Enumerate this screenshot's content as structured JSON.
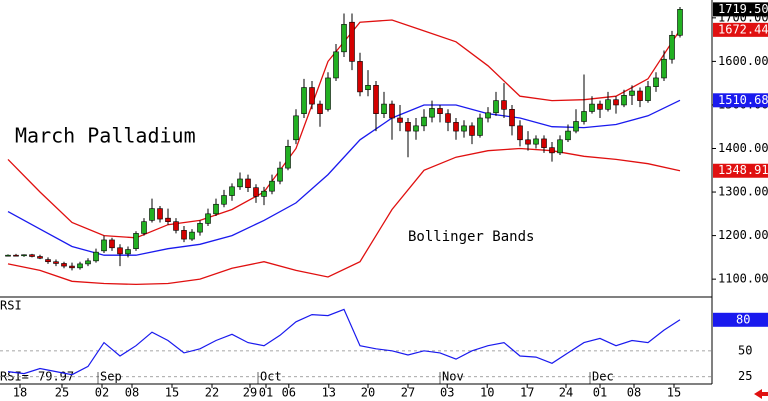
{
  "chart_data": [
    {
      "type": "candlestick",
      "title": "March Palladium",
      "annotation": "Bollinger Bands",
      "up_color": "#22b022",
      "down_color": "#d40000",
      "last_label": "1719.50",
      "xlim": [
        -1,
        88
      ],
      "ylim": [
        1059,
        1741
      ],
      "yticks": [
        {
          "value": 1100,
          "label": "1100.00"
        },
        {
          "value": 1200,
          "label": "1200.00"
        },
        {
          "value": 1300,
          "label": "1300.00"
        },
        {
          "value": 1400,
          "label": "1400.00"
        },
        {
          "value": 1500,
          "label": "1500.00"
        },
        {
          "value": 1600,
          "label": "1600.00"
        },
        {
          "value": 1700,
          "label": "1700.00"
        }
      ],
      "ohlc": [
        [
          1155,
          1157,
          1153,
          1155
        ],
        [
          1155,
          1158,
          1152,
          1154
        ],
        [
          1154,
          1157,
          1151,
          1156
        ],
        [
          1156,
          1158,
          1150,
          1152
        ],
        [
          1152,
          1156,
          1146,
          1148
        ],
        [
          1145,
          1150,
          1135,
          1140
        ],
        [
          1140,
          1145,
          1130,
          1136
        ],
        [
          1136,
          1140,
          1125,
          1130
        ],
        [
          1130,
          1138,
          1120,
          1126
        ],
        [
          1126,
          1140,
          1122,
          1135
        ],
        [
          1135,
          1148,
          1130,
          1142
        ],
        [
          1142,
          1170,
          1138,
          1162
        ],
        [
          1165,
          1200,
          1160,
          1190
        ],
        [
          1190,
          1195,
          1165,
          1172
        ],
        [
          1172,
          1180,
          1130,
          1158
        ],
        [
          1158,
          1175,
          1150,
          1168
        ],
        [
          1170,
          1210,
          1165,
          1205
        ],
        [
          1205,
          1240,
          1200,
          1232
        ],
        [
          1235,
          1285,
          1230,
          1262
        ],
        [
          1262,
          1268,
          1230,
          1238
        ],
        [
          1240,
          1262,
          1225,
          1232
        ],
        [
          1232,
          1240,
          1205,
          1212
        ],
        [
          1212,
          1222,
          1185,
          1192
        ],
        [
          1192,
          1215,
          1188,
          1208
        ],
        [
          1208,
          1235,
          1200,
          1228
        ],
        [
          1228,
          1262,
          1222,
          1250
        ],
        [
          1250,
          1285,
          1245,
          1272
        ],
        [
          1272,
          1305,
          1265,
          1292
        ],
        [
          1292,
          1320,
          1280,
          1312
        ],
        [
          1312,
          1345,
          1305,
          1330
        ],
        [
          1330,
          1340,
          1300,
          1310
        ],
        [
          1310,
          1318,
          1275,
          1290
        ],
        [
          1290,
          1312,
          1270,
          1302
        ],
        [
          1302,
          1340,
          1295,
          1325
        ],
        [
          1325,
          1370,
          1318,
          1355
        ],
        [
          1355,
          1420,
          1350,
          1405
        ],
        [
          1420,
          1490,
          1410,
          1475
        ],
        [
          1480,
          1560,
          1470,
          1540
        ],
        [
          1540,
          1555,
          1490,
          1502
        ],
        [
          1502,
          1510,
          1450,
          1480
        ],
        [
          1490,
          1575,
          1485,
          1562
        ],
        [
          1562,
          1640,
          1555,
          1622
        ],
        [
          1622,
          1710,
          1610,
          1685
        ],
        [
          1690,
          1710,
          1580,
          1600
        ],
        [
          1600,
          1620,
          1520,
          1530
        ],
        [
          1535,
          1580,
          1520,
          1545
        ],
        [
          1545,
          1555,
          1440,
          1480
        ],
        [
          1480,
          1530,
          1470,
          1502
        ],
        [
          1502,
          1510,
          1420,
          1470
        ],
        [
          1470,
          1500,
          1440,
          1460
        ],
        [
          1460,
          1470,
          1380,
          1440
        ],
        [
          1440,
          1470,
          1420,
          1452
        ],
        [
          1452,
          1490,
          1440,
          1472
        ],
        [
          1472,
          1510,
          1460,
          1492
        ],
        [
          1492,
          1500,
          1460,
          1480
        ],
        [
          1480,
          1490,
          1440,
          1460
        ],
        [
          1460,
          1470,
          1420,
          1440
        ],
        [
          1440,
          1465,
          1425,
          1452
        ],
        [
          1452,
          1460,
          1410,
          1430
        ],
        [
          1430,
          1480,
          1425,
          1470
        ],
        [
          1470,
          1495,
          1460,
          1482
        ],
        [
          1482,
          1530,
          1475,
          1510
        ],
        [
          1510,
          1550,
          1470,
          1490
        ],
        [
          1490,
          1500,
          1430,
          1452
        ],
        [
          1452,
          1465,
          1405,
          1420
        ],
        [
          1420,
          1440,
          1395,
          1410
        ],
        [
          1410,
          1430,
          1400,
          1422
        ],
        [
          1422,
          1430,
          1390,
          1402
        ],
        [
          1402,
          1415,
          1370,
          1390
        ],
        [
          1390,
          1430,
          1385,
          1420
        ],
        [
          1420,
          1455,
          1415,
          1440
        ],
        [
          1440,
          1490,
          1435,
          1462
        ],
        [
          1462,
          1570,
          1455,
          1485
        ],
        [
          1485,
          1520,
          1480,
          1502
        ],
        [
          1502,
          1510,
          1470,
          1490
        ],
        [
          1490,
          1530,
          1485,
          1512
        ],
        [
          1512,
          1520,
          1480,
          1500
        ],
        [
          1500,
          1535,
          1495,
          1522
        ],
        [
          1522,
          1545,
          1500,
          1532
        ],
        [
          1532,
          1540,
          1495,
          1510
        ],
        [
          1510,
          1555,
          1505,
          1542
        ],
        [
          1542,
          1575,
          1530,
          1562
        ],
        [
          1562,
          1625,
          1555,
          1605
        ],
        [
          1605,
          1670,
          1595,
          1660
        ],
        [
          1660,
          1725,
          1655,
          1719.5
        ]
      ],
      "series": [
        {
          "color": "#e01010",
          "x": [
            0,
            4,
            8,
            12,
            16,
            20,
            24,
            28,
            32,
            36,
            40,
            44,
            48,
            52,
            56,
            60,
            64,
            68,
            72,
            76,
            80,
            84
          ],
          "values": [
            1375,
            1300,
            1230,
            1200,
            1195,
            1225,
            1235,
            1260,
            1300,
            1400,
            1600,
            1690,
            1695,
            1670,
            1645,
            1590,
            1520,
            1510,
            1512,
            1520,
            1560,
            1672.44
          ]
        },
        {
          "color": "#1a1aee",
          "x": [
            0,
            4,
            8,
            12,
            16,
            20,
            24,
            28,
            32,
            36,
            40,
            44,
            48,
            52,
            56,
            60,
            64,
            68,
            72,
            76,
            80,
            84
          ],
          "values": [
            1255,
            1215,
            1175,
            1155,
            1155,
            1170,
            1180,
            1200,
            1235,
            1275,
            1340,
            1420,
            1470,
            1500,
            1500,
            1480,
            1470,
            1450,
            1448,
            1455,
            1475,
            1510.68
          ]
        },
        {
          "color": "#e01010",
          "x": [
            0,
            4,
            8,
            12,
            16,
            20,
            24,
            28,
            32,
            36,
            40,
            44,
            48,
            52,
            56,
            60,
            64,
            68,
            72,
            76,
            80,
            84
          ],
          "values": [
            1135,
            1120,
            1095,
            1090,
            1088,
            1090,
            1100,
            1125,
            1140,
            1120,
            1105,
            1140,
            1260,
            1350,
            1380,
            1395,
            1400,
            1395,
            1382,
            1375,
            1365,
            1348.91
          ]
        }
      ]
    },
    {
      "type": "line",
      "title": "RSI",
      "readout": "RSI=",
      "color": "#1a1aee",
      "last_label": "80",
      "xlim": [
        -1,
        88
      ],
      "ylim": [
        18,
        101
      ],
      "yticks": [
        25,
        50
      ],
      "grid": true,
      "x": [
        0,
        2,
        4,
        6,
        8,
        10,
        12,
        14,
        16,
        18,
        20,
        22,
        24,
        26,
        28,
        30,
        32,
        34,
        36,
        38,
        40,
        42,
        44,
        46,
        48,
        50,
        52,
        54,
        56,
        58,
        60,
        62,
        64,
        66,
        68,
        70,
        72,
        74,
        76,
        78,
        80,
        82,
        84
      ],
      "values": [
        30,
        28,
        33,
        30,
        27,
        35,
        58,
        45,
        55,
        68,
        60,
        48,
        52,
        60,
        66,
        58,
        55,
        65,
        78,
        85,
        84,
        90,
        55,
        52,
        50,
        46,
        50,
        48,
        42,
        50,
        55,
        58,
        45,
        44,
        38,
        48,
        58,
        62,
        55,
        60,
        58,
        70,
        79.97
      ],
      "xticks": [
        {
          "value": 1.5,
          "label": "18"
        },
        {
          "value": 6.75,
          "label": "25"
        },
        {
          "value": 11.75,
          "label": "02"
        },
        {
          "value": 15.5,
          "label": "08"
        },
        {
          "value": 20.5,
          "label": "15"
        },
        {
          "value": 25.5,
          "label": "22"
        },
        {
          "value": 30.25,
          "label": "29"
        },
        {
          "value": 32.25,
          "label": "01"
        },
        {
          "value": 35.1,
          "label": "06"
        },
        {
          "value": 40.1,
          "label": "13"
        },
        {
          "value": 45,
          "label": "20"
        },
        {
          "value": 50,
          "label": "27"
        },
        {
          "value": 54.9,
          "label": "03"
        },
        {
          "value": 59.9,
          "label": "10"
        },
        {
          "value": 64.9,
          "label": "17"
        },
        {
          "value": 69.75,
          "label": "24"
        },
        {
          "value": 74,
          "label": "01"
        },
        {
          "value": 78.25,
          "label": "08"
        },
        {
          "value": 83.25,
          "label": "15"
        }
      ],
      "months": [
        {
          "value": 12.5,
          "label": "Sep"
        },
        {
          "value": 32.5,
          "label": "Oct"
        },
        {
          "value": 55.25,
          "label": "Nov"
        },
        {
          "value": 74,
          "label": "Dec"
        }
      ]
    }
  ]
}
